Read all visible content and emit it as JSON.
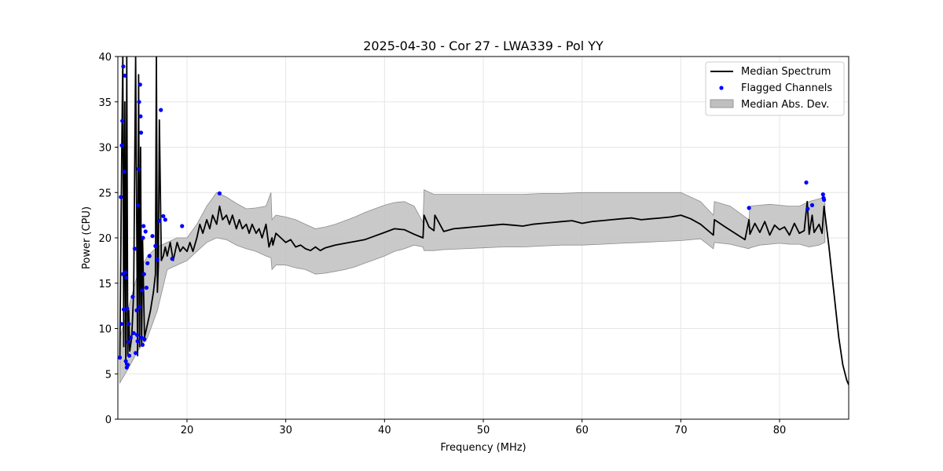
{
  "chart_data": {
    "type": "line",
    "title": "2025-04-30 - Cor 27 - LWA339 - Pol YY",
    "xlabel": "Frequency (MHz)",
    "ylabel": "Power (CPU)",
    "xlim": [
      13,
      87
    ],
    "ylim": [
      0,
      40
    ],
    "xticks": [
      20,
      30,
      40,
      50,
      60,
      70,
      80
    ],
    "yticks": [
      0,
      5,
      10,
      15,
      20,
      25,
      30,
      35,
      40
    ],
    "grid": true,
    "legend": {
      "placement": "top-right",
      "entries": [
        "Median Spectrum",
        "Flagged Channels",
        "Median Abs. Dev."
      ]
    },
    "colors": {
      "median": "#000000",
      "flagged": "#0000ff",
      "mad_fill": "#bfbfbf",
      "mad_edge": "#8c8c8c"
    },
    "series": [
      {
        "name": "Median Spectrum",
        "kind": "line",
        "x": [
          13.2,
          13.4,
          13.5,
          13.6,
          13.7,
          13.8,
          13.9,
          14.0,
          14.1,
          14.2,
          14.4,
          14.6,
          14.8,
          15.0,
          15.1,
          15.2,
          15.3,
          15.4,
          15.5,
          15.7,
          16.0,
          16.3,
          16.6,
          16.8,
          16.9,
          17.0,
          17.1,
          17.2,
          17.4,
          17.6,
          17.8,
          18.0,
          18.3,
          18.6,
          19.0,
          19.3,
          19.6,
          20.0,
          20.3,
          20.6,
          21.0,
          21.3,
          21.6,
          22.0,
          22.3,
          22.6,
          23.0,
          23.3,
          23.6,
          24.0,
          24.3,
          24.6,
          25.0,
          25.3,
          25.6,
          26.0,
          26.3,
          26.6,
          27.0,
          27.3,
          27.6,
          28.0,
          28.3,
          28.6,
          28.7,
          29.0,
          29.5,
          30.0,
          30.5,
          31.0,
          31.5,
          32.0,
          32.5,
          33.0,
          33.5,
          34.0,
          35.0,
          36.0,
          37.0,
          38.0,
          39.0,
          40.0,
          41.0,
          42.0,
          43.0,
          43.9,
          44.0,
          44.5,
          45.0,
          45.1,
          46.0,
          47.0,
          48.0,
          49.0,
          50.0,
          51.0,
          52.0,
          53.0,
          54.0,
          55.0,
          56.0,
          57.0,
          58.0,
          59.0,
          60.0,
          61.0,
          62.0,
          63.0,
          64.0,
          65.0,
          66.0,
          67.0,
          68.0,
          69.0,
          70.0,
          71.0,
          72.0,
          73.3,
          73.4,
          74.5,
          75.5,
          76.5,
          76.9,
          77.0,
          77.5,
          78.0,
          78.5,
          79.0,
          79.5,
          80.0,
          80.5,
          81.0,
          81.5,
          82.0,
          82.5,
          82.8,
          83.0,
          83.3,
          83.5,
          84.0,
          84.3,
          84.5,
          84.8,
          85.0,
          85.3,
          85.6,
          86.0,
          86.4,
          86.8,
          87.0
        ],
        "y": [
          6.8,
          30.0,
          40.0,
          8.0,
          35.0,
          6.0,
          40.0,
          7.0,
          12.0,
          7.5,
          9.0,
          14.0,
          40.0,
          7.0,
          38.0,
          8.0,
          30.0,
          8.2,
          20.0,
          9.0,
          10.5,
          12.0,
          14.0,
          16.0,
          40.0,
          14.0,
          17.0,
          33.0,
          17.5,
          18.0,
          19.0,
          18.0,
          19.5,
          17.5,
          19.5,
          18.5,
          19.0,
          18.5,
          19.5,
          18.5,
          20.0,
          21.5,
          20.5,
          22.0,
          21.0,
          22.5,
          21.5,
          23.5,
          22.0,
          22.5,
          21.5,
          22.5,
          21.0,
          22.0,
          21.0,
          21.5,
          20.5,
          21.5,
          20.5,
          21.0,
          20.0,
          21.5,
          19.0,
          20.0,
          19.2,
          20.5,
          20.0,
          19.5,
          19.8,
          19.0,
          19.2,
          18.8,
          18.6,
          19.0,
          18.6,
          18.9,
          19.2,
          19.4,
          19.6,
          19.8,
          20.2,
          20.6,
          21.0,
          20.9,
          20.4,
          20.0,
          22.5,
          21.2,
          20.8,
          22.5,
          20.7,
          21.0,
          21.1,
          21.2,
          21.3,
          21.4,
          21.5,
          21.4,
          21.3,
          21.5,
          21.6,
          21.7,
          21.8,
          21.9,
          21.6,
          21.8,
          21.9,
          22.0,
          22.1,
          22.2,
          22.0,
          22.1,
          22.2,
          22.3,
          22.5,
          22.1,
          21.5,
          20.3,
          22.0,
          21.2,
          20.5,
          19.8,
          22.0,
          20.4,
          21.6,
          20.6,
          21.8,
          20.3,
          21.4,
          20.9,
          21.2,
          20.3,
          21.6,
          20.5,
          20.8,
          24.0,
          20.4,
          22.5,
          20.6,
          21.5,
          20.5,
          23.5,
          20.8,
          19.0,
          16.0,
          13.0,
          9.0,
          6.0,
          4.3,
          3.8
        ]
      },
      {
        "name": "Flagged Channels",
        "kind": "scatter",
        "x": [
          13.2,
          13.3,
          13.35,
          13.4,
          13.45,
          13.5,
          13.55,
          13.6,
          13.65,
          13.7,
          13.75,
          13.8,
          13.85,
          13.9,
          13.95,
          14.0,
          14.05,
          14.1,
          14.15,
          14.3,
          14.5,
          14.6,
          14.7,
          14.8,
          14.9,
          14.95,
          15.0,
          15.05,
          15.1,
          15.15,
          15.2,
          15.25,
          15.3,
          15.35,
          15.4,
          15.45,
          15.5,
          15.55,
          15.6,
          15.65,
          15.7,
          15.8,
          15.9,
          16.0,
          16.2,
          16.5,
          16.8,
          17.0,
          17.2,
          17.35,
          17.6,
          17.8,
          18.5,
          19.5,
          23.3,
          76.9,
          82.7,
          82.85,
          83.3,
          84.4,
          84.45,
          84.5
        ],
        "y": [
          6.8,
          24.5,
          10.5,
          30.2,
          32.9,
          16.0,
          38.9,
          12.1,
          27.3,
          37.9,
          16.2,
          6.4,
          15.6,
          5.7,
          12.2,
          6.0,
          8.5,
          10.5,
          7.0,
          9.0,
          13.5,
          9.5,
          18.8,
          7.3,
          12.0,
          9.3,
          8.6,
          23.6,
          27.6,
          35.0,
          12.4,
          36.9,
          33.4,
          31.6,
          9.0,
          14.2,
          8.2,
          20.0,
          21.3,
          16.0,
          8.8,
          20.7,
          14.5,
          17.2,
          18.0,
          20.2,
          19.1,
          17.6,
          21.9,
          34.1,
          22.4,
          22.0,
          17.7,
          21.3,
          24.9,
          23.3,
          26.1,
          23.2,
          23.6,
          24.8,
          24.4,
          24.2
        ]
      },
      {
        "name": "Median Abs. Dev.",
        "kind": "band",
        "x": [
          13.2,
          14.0,
          15.0,
          16.0,
          17.0,
          18.0,
          19.0,
          20.0,
          21.0,
          22.0,
          23.0,
          24.0,
          25.0,
          26.0,
          27.0,
          28.0,
          28.5,
          28.6,
          29.0,
          30.0,
          31.0,
          32.0,
          33.0,
          34.0,
          35.0,
          36.0,
          37.0,
          38.0,
          39.0,
          40.0,
          41.0,
          42.0,
          43.0,
          43.9,
          44.0,
          45.0,
          46.0,
          48.0,
          50.0,
          52.0,
          54.0,
          56.0,
          58.0,
          60.0,
          62.0,
          64.0,
          66.0,
          68.0,
          70.0,
          72.0,
          73.3,
          73.4,
          75.0,
          76.9,
          77.0,
          78.0,
          79.0,
          80.0,
          81.0,
          82.0,
          83.0,
          84.0,
          84.6
        ],
        "lower": [
          4.0,
          5.5,
          7.5,
          9.0,
          12.0,
          16.5,
          17.0,
          17.5,
          18.5,
          19.5,
          20.0,
          19.8,
          19.2,
          18.8,
          18.5,
          18.0,
          17.8,
          16.5,
          17.0,
          17.0,
          16.7,
          16.5,
          16.0,
          16.1,
          16.3,
          16.5,
          16.8,
          17.2,
          17.6,
          18.0,
          18.5,
          18.8,
          19.2,
          19.0,
          18.6,
          18.6,
          18.7,
          18.8,
          18.9,
          19.0,
          19.0,
          19.1,
          19.2,
          19.2,
          19.3,
          19.4,
          19.5,
          19.6,
          19.7,
          19.9,
          18.8,
          19.5,
          19.3,
          18.8,
          18.9,
          19.2,
          19.3,
          19.4,
          19.3,
          19.3,
          19.0,
          19.2,
          19.5
        ],
        "upper": [
          9.0,
          12.0,
          16.0,
          18.0,
          19.0,
          19.5,
          20.0,
          20.0,
          21.5,
          23.5,
          25.0,
          24.5,
          23.8,
          23.2,
          23.3,
          23.5,
          25.0,
          22.0,
          22.5,
          22.3,
          22.0,
          21.5,
          21.0,
          21.2,
          21.5,
          21.9,
          22.3,
          22.8,
          23.2,
          23.6,
          23.9,
          24.0,
          23.5,
          21.7,
          25.3,
          24.8,
          24.8,
          24.8,
          24.8,
          24.8,
          24.8,
          24.9,
          24.9,
          25.0,
          25.0,
          25.0,
          25.0,
          25.0,
          25.0,
          24.0,
          22.5,
          24.0,
          23.5,
          22.0,
          23.5,
          23.6,
          23.7,
          23.6,
          23.5,
          23.5,
          24.0,
          24.3,
          24.5
        ]
      }
    ]
  }
}
